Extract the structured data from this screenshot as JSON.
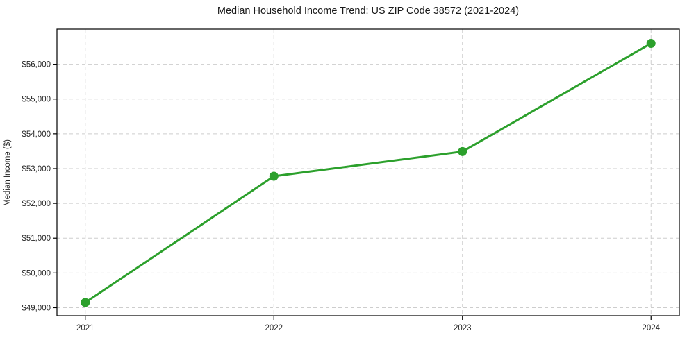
{
  "chart_data": {
    "type": "line",
    "title": "Median Household Income Trend: US ZIP Code 38572 (2021-2024)",
    "xlabel": "",
    "ylabel": "Median Income ($)",
    "categories": [
      "2021",
      "2022",
      "2023",
      "2024"
    ],
    "values": [
      49150,
      52780,
      53490,
      56600
    ],
    "ylim": [
      48770,
      57010
    ],
    "yticks": {
      "values": [
        49000,
        50000,
        51000,
        52000,
        53000,
        54000,
        55000,
        56000
      ],
      "labels": [
        "$49,000",
        "$50,000",
        "$51,000",
        "$52,000",
        "$53,000",
        "$54,000",
        "$55,000",
        "$56,000"
      ]
    },
    "grid": true,
    "grid_style": "dashed",
    "legend": "none",
    "marker": "filled-circle",
    "colors": {
      "line": "#2ca02c",
      "grid": "#cdcdcd",
      "axis": "#000000",
      "text": "#262626",
      "background": "#ffffff"
    }
  }
}
